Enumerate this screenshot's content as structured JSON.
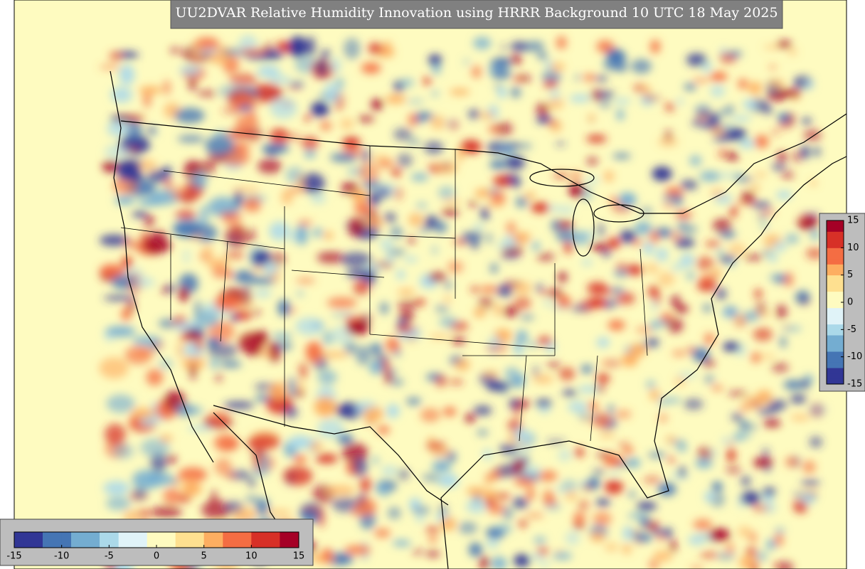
{
  "title": "UU2DVAR Relative Humidity Innovation using HRRR Background 10 UTC 18 May 2025",
  "colorbar": {
    "range": [
      -15,
      15
    ],
    "ticks": [
      -15,
      -10,
      -5,
      0,
      5,
      10,
      15
    ],
    "colors": [
      "#313695",
      "#4575b4",
      "#74add1",
      "#abd9e9",
      "#e0f3f8",
      "#fefbc0",
      "#fee090",
      "#fdae61",
      "#f46d43",
      "#d73027",
      "#a50026"
    ]
  }
}
